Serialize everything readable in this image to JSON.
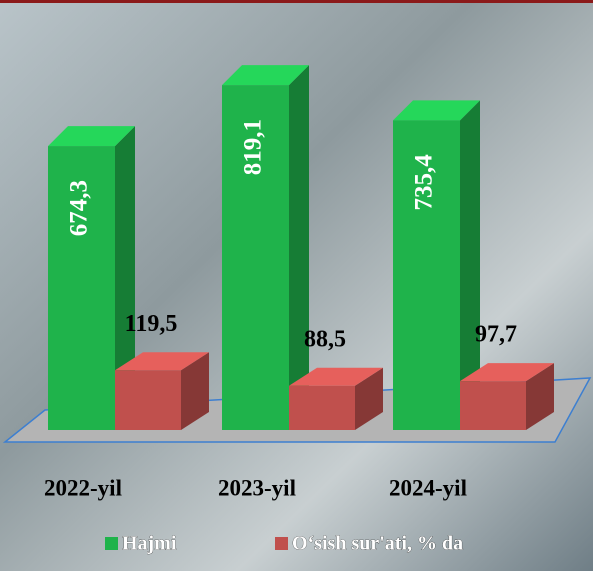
{
  "chart_data": {
    "type": "bar3d",
    "categories": [
      "2022-yil",
      "2023-yil",
      "2024-yil"
    ],
    "series": [
      {
        "name": "Hajmi",
        "color": "#1fb34b",
        "values": [
          674.3,
          819.1,
          735.4
        ],
        "value_labels": [
          "674,3",
          "819,1",
          "735,4"
        ]
      },
      {
        "name": "O‘sish sur'ati, % da",
        "color": "#c0504d",
        "axis": "y2",
        "values": [
          119.5,
          88.5,
          97.7
        ],
        "value_labels": [
          "119,5",
          "88,5",
          "97,7"
        ]
      }
    ],
    "ylim": [
      0,
      950
    ],
    "y2lim": [
      0,
      800
    ]
  }
}
